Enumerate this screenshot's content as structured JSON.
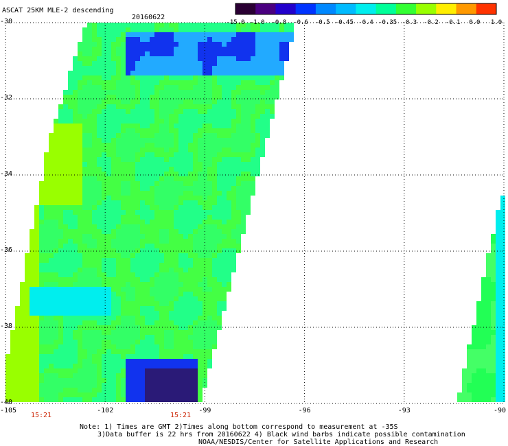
{
  "header": {
    "title": "ASCAT 25KM MLE-2 descending",
    "date": "20160622"
  },
  "colorbar": {
    "labels": [
      "-15.0",
      "-1.0",
      "-0.8",
      "-0.6",
      "-0.5",
      "-0.45",
      "-0.4",
      "-0.35",
      "-0.3",
      "-0.2",
      "-0.1",
      "0.0",
      "1.0"
    ],
    "colors": [
      "#2a0033",
      "#4a0080",
      "#2200cc",
      "#0033ff",
      "#0088ff",
      "#00bbff",
      "#00eeee",
      "#00ff99",
      "#33ff33",
      "#99ff00",
      "#ffee00",
      "#ff9900",
      "#ff3300"
    ]
  },
  "axes": {
    "lat_labels": [
      "-30",
      "-32",
      "-34",
      "-36",
      "-38",
      "-40"
    ],
    "lon_labels": [
      "-105",
      "-102",
      "-99",
      "-96",
      "-93",
      "-90"
    ],
    "time_labels": [
      "15:21",
      "15:21"
    ]
  },
  "notes": {
    "line1": "Note: 1) Times are GMT 2)Times along bottom correspond to measurement at -35S",
    "line2": "3)Data buffer is 22 hrs from 20160622 4) Black wind barbs indicate possible contamination",
    "line3": "NOAA/NESDIS/Center for Satellite Applications and Research"
  }
}
